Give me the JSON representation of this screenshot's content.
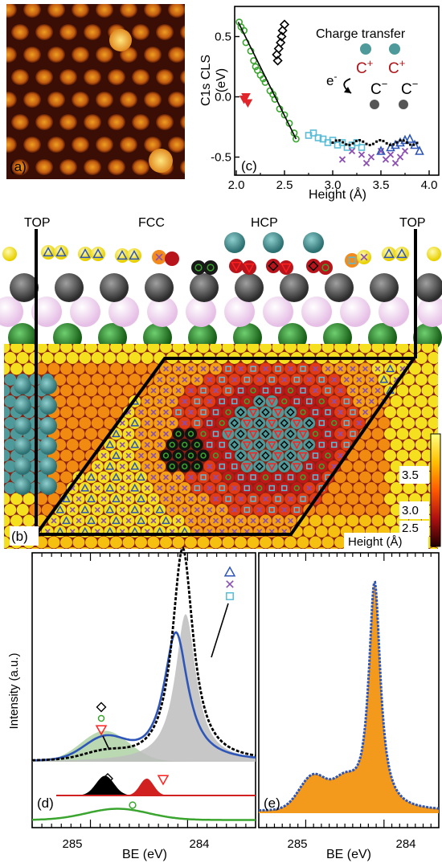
{
  "panel_a": {
    "label": "(a)"
  },
  "panel_c": {
    "label": "(c)",
    "ylabel_line1": "C1s CLS",
    "ylabel_line2": "(eV)",
    "xlabel": "Height (Å)",
    "yticks": [
      "0.5",
      "0.0",
      "-0.5"
    ],
    "xticks": [
      "2.0",
      "2.5",
      "3.0",
      "3.5",
      "4.0"
    ],
    "inset": {
      "title": "Charge transfer",
      "c_plus": "C",
      "c_plus_sup": "+",
      "c_minus": "C",
      "c_minus_sup": "−",
      "electron": "e",
      "electron_sup": "-"
    }
  },
  "panel_b": {
    "label": "(b)",
    "site_labels": [
      "TOP",
      "FCC",
      "HCP",
      "TOP"
    ],
    "colorbar_ticks": [
      "3.5",
      "3.0",
      "2.5"
    ],
    "colorbar_label": "Height (Å)"
  },
  "panel_d": {
    "label": "(d)",
    "ylabel": "Intensity (a.u.)",
    "xlabel": "BE (eV)",
    "xticks": [
      "285",
      "284"
    ]
  },
  "panel_e": {
    "label": "(e)",
    "xlabel": "BE (eV)",
    "xticks": [
      "285",
      "284"
    ]
  },
  "colors": {
    "green": "#3aa52e",
    "red": "#e0262a",
    "black": "#000000",
    "cyan": "#5bbcd6",
    "purple": "#8a4fb0",
    "blue": "#2e55b8",
    "teal_atom": "#4e9a9a",
    "orange_fill": "#f39a1c"
  },
  "chart_data": [
    {
      "type": "scatter",
      "panel": "(c)",
      "xlabel": "Height (Å)",
      "ylabel": "C1s CLS (eV)",
      "xlim": [
        2.0,
        4.0
      ],
      "ylim": [
        -0.65,
        0.75
      ],
      "series": [
        {
          "marker": "green-circle",
          "x": [
            2.03,
            2.05,
            2.08,
            2.1,
            2.15,
            2.18,
            2.2,
            2.22,
            2.25,
            2.28,
            2.3,
            2.35,
            2.38,
            2.4,
            2.45,
            2.5,
            2.55,
            2.6,
            2.62
          ],
          "y": [
            0.62,
            0.58,
            0.55,
            0.45,
            0.38,
            0.3,
            0.25,
            0.22,
            0.18,
            0.15,
            0.12,
            0.05,
            0.02,
            -0.02,
            -0.1,
            -0.15,
            -0.22,
            -0.3,
            -0.35
          ]
        },
        {
          "marker": "red-down-triangle",
          "x": [
            2.08,
            2.1,
            2.12
          ],
          "y": [
            -0.02,
            0.0,
            -0.05
          ]
        },
        {
          "marker": "black-diamond",
          "x": [
            2.42,
            2.44,
            2.46,
            2.48,
            2.5,
            2.43,
            2.47
          ],
          "y": [
            0.35,
            0.4,
            0.45,
            0.55,
            0.6,
            0.3,
            0.5
          ]
        },
        {
          "marker": "cyan-square",
          "x": [
            2.75,
            2.8,
            2.85,
            2.9,
            2.95,
            3.0,
            3.05,
            3.1,
            3.15,
            3.2,
            3.25,
            3.3
          ],
          "y": [
            -0.32,
            -0.3,
            -0.34,
            -0.35,
            -0.38,
            -0.36,
            -0.4,
            -0.38,
            -0.42,
            -0.4,
            -0.38,
            -0.42
          ]
        },
        {
          "marker": "purple-cross",
          "x": [
            3.1,
            3.2,
            3.3,
            3.35,
            3.4,
            3.5,
            3.55,
            3.6,
            3.65,
            3.7,
            3.75
          ],
          "y": [
            -0.52,
            -0.45,
            -0.48,
            -0.55,
            -0.5,
            -0.45,
            -0.52,
            -0.48,
            -0.55,
            -0.5,
            -0.45
          ]
        },
        {
          "marker": "blue-up-triangle",
          "x": [
            3.5,
            3.6,
            3.65,
            3.7,
            3.75,
            3.8,
            3.85,
            3.9
          ],
          "y": [
            -0.45,
            -0.42,
            -0.4,
            -0.38,
            -0.36,
            -0.35,
            -0.4,
            -0.45
          ]
        }
      ],
      "fit_line": {
        "x": [
          2.02,
          2.62
        ],
        "y": [
          0.62,
          -0.35
        ]
      }
    },
    {
      "type": "line",
      "panel": "(d)",
      "xlabel": "BE (eV)",
      "x_reversed": true,
      "xlim": [
        285.6,
        283.3
      ],
      "peaks": [
        {
          "name": "blue",
          "center": 284.12,
          "height": 1.0
        },
        {
          "name": "black-dashed",
          "center": 284.05,
          "height": 1.55
        },
        {
          "name": "grey-fill",
          "center": 284.02,
          "height": 1.05
        },
        {
          "name": "green-fill",
          "center": 284.85,
          "height": 0.22
        }
      ]
    },
    {
      "type": "line",
      "panel": "(e)",
      "xlabel": "BE (eV)",
      "x_reversed": true,
      "xlim": [
        285.6,
        283.3
      ],
      "peaks": [
        {
          "name": "orange-fill",
          "center": 284.12,
          "height": 1.0
        },
        {
          "name": "blue-dotted",
          "center": 284.12,
          "height": 1.0
        }
      ]
    }
  ]
}
